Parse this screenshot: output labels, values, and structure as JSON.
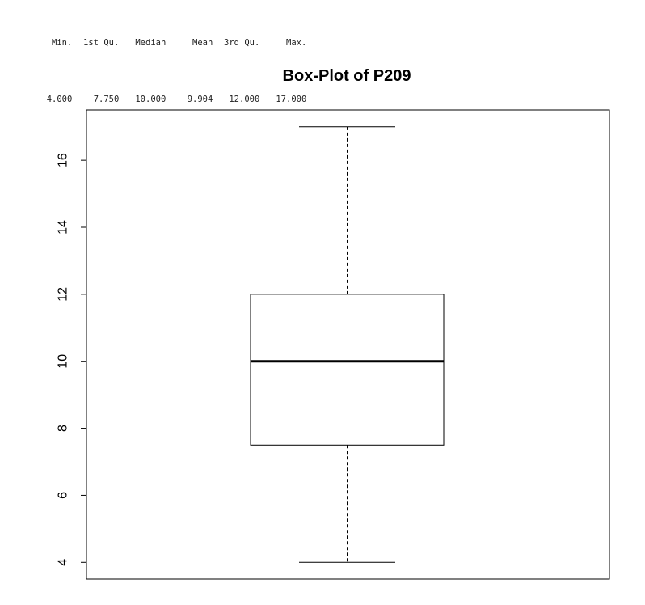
{
  "summary": {
    "headers": [
      "Min.",
      "1st Qu.",
      "Median",
      "Mean",
      "3rd Qu.",
      "Max."
    ],
    "values": [
      "4.000",
      "7.750",
      "10.000",
      "9.904",
      "12.000",
      "17.000"
    ]
  },
  "chart_data": {
    "type": "boxplot",
    "title": "Box-Plot of P209",
    "xlabel": "",
    "ylabel": "",
    "ylim": [
      3.5,
      17.5
    ],
    "yticks": [
      4,
      6,
      8,
      10,
      12,
      14,
      16
    ],
    "ytick_labels": [
      "4",
      "6",
      "8",
      "10",
      "12",
      "14",
      "16"
    ],
    "box": {
      "min": 4,
      "q1": 7.5,
      "median": 10,
      "q3": 12,
      "max": 17
    },
    "grid": false,
    "colors": {
      "box_fill": "#ffffff",
      "stroke": "#000000"
    }
  }
}
